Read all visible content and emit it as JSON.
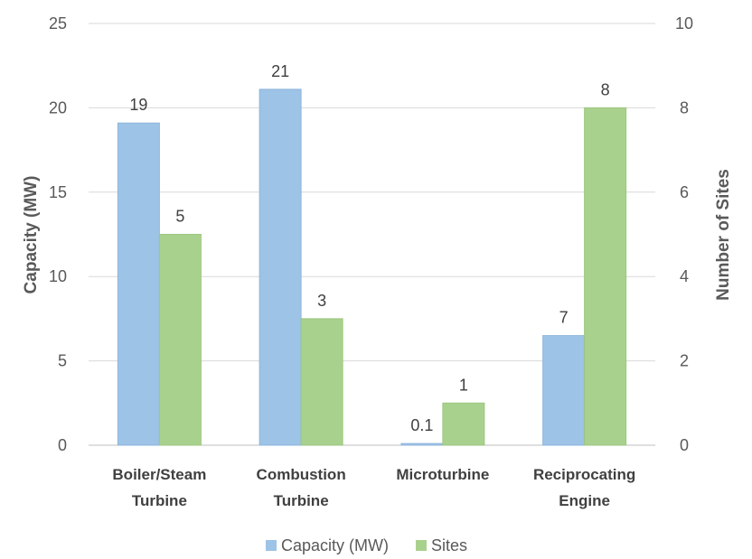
{
  "chart_data": {
    "type": "bar",
    "categories": [
      [
        "Boiler/Steam",
        "Turbine"
      ],
      [
        "Combustion",
        "Turbine"
      ],
      [
        "Microturbine"
      ],
      [
        "Reciprocating",
        "Engine"
      ]
    ],
    "series": [
      {
        "name": "Capacity (MW)",
        "axis": "left",
        "color": "#9DC3E6",
        "values": [
          19.1,
          21.1,
          0.1,
          6.5
        ],
        "labels": [
          "19",
          "21",
          "0.1",
          "7"
        ]
      },
      {
        "name": "Sites",
        "axis": "right",
        "color": "#A9D18E",
        "values": [
          5,
          3,
          1,
          8
        ],
        "labels": [
          "5",
          "3",
          "1",
          "8"
        ]
      }
    ],
    "y_left": {
      "label": "Capacity (MW)",
      "min": 0,
      "max": 25,
      "ticks": [
        "0",
        "5",
        "10",
        "15",
        "20",
        "25"
      ]
    },
    "y_right": {
      "label": "Number of Sites",
      "min": 0,
      "max": 10,
      "ticks": [
        "0",
        "2",
        "4",
        "6",
        "8",
        "10"
      ]
    },
    "grid": true,
    "legend_position": "bottom"
  }
}
